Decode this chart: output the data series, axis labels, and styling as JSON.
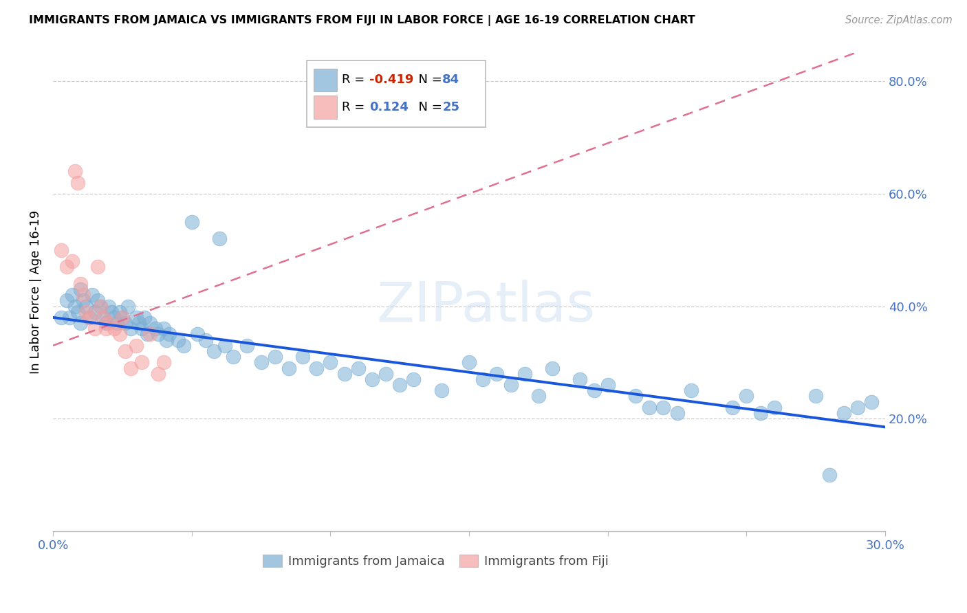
{
  "title": "IMMIGRANTS FROM JAMAICA VS IMMIGRANTS FROM FIJI IN LABOR FORCE | AGE 16-19 CORRELATION CHART",
  "source": "Source: ZipAtlas.com",
  "ylabel": "In Labor Force | Age 16-19",
  "xlim": [
    0.0,
    0.3
  ],
  "ylim": [
    0.0,
    0.85
  ],
  "ytick_positions": [
    0.2,
    0.4,
    0.6,
    0.8
  ],
  "ytick_labels": [
    "20.0%",
    "40.0%",
    "60.0%",
    "80.0%"
  ],
  "xtick_positions": [
    0.0,
    0.05,
    0.1,
    0.15,
    0.2,
    0.25,
    0.3
  ],
  "xtick_labels": [
    "0.0%",
    "",
    "",
    "",
    "",
    "",
    "30.0%"
  ],
  "jamaica_color": "#7bafd4",
  "fiji_color": "#f4a0a0",
  "jamaica_line_color": "#1a56db",
  "fiji_line_color": "#e07090",
  "jamaica_R": -0.419,
  "jamaica_N": 84,
  "fiji_R": 0.124,
  "fiji_N": 25,
  "jamaica_scatter_x": [
    0.003,
    0.005,
    0.006,
    0.007,
    0.008,
    0.009,
    0.01,
    0.01,
    0.011,
    0.012,
    0.013,
    0.014,
    0.015,
    0.016,
    0.017,
    0.018,
    0.019,
    0.02,
    0.021,
    0.022,
    0.023,
    0.024,
    0.025,
    0.026,
    0.027,
    0.028,
    0.03,
    0.031,
    0.032,
    0.033,
    0.034,
    0.035,
    0.037,
    0.038,
    0.04,
    0.041,
    0.042,
    0.045,
    0.047,
    0.05,
    0.052,
    0.055,
    0.058,
    0.06,
    0.062,
    0.065,
    0.07,
    0.075,
    0.08,
    0.085,
    0.09,
    0.095,
    0.1,
    0.105,
    0.11,
    0.115,
    0.12,
    0.125,
    0.13,
    0.14,
    0.15,
    0.155,
    0.16,
    0.165,
    0.17,
    0.175,
    0.18,
    0.19,
    0.195,
    0.2,
    0.21,
    0.215,
    0.22,
    0.225,
    0.23,
    0.245,
    0.25,
    0.255,
    0.26,
    0.275,
    0.28,
    0.285,
    0.29,
    0.295
  ],
  "jamaica_scatter_y": [
    0.38,
    0.41,
    0.38,
    0.42,
    0.4,
    0.39,
    0.43,
    0.37,
    0.41,
    0.4,
    0.38,
    0.42,
    0.39,
    0.41,
    0.4,
    0.38,
    0.37,
    0.4,
    0.39,
    0.38,
    0.37,
    0.39,
    0.38,
    0.37,
    0.4,
    0.36,
    0.38,
    0.37,
    0.36,
    0.38,
    0.35,
    0.37,
    0.36,
    0.35,
    0.36,
    0.34,
    0.35,
    0.34,
    0.33,
    0.55,
    0.35,
    0.34,
    0.32,
    0.52,
    0.33,
    0.31,
    0.33,
    0.3,
    0.31,
    0.29,
    0.31,
    0.29,
    0.3,
    0.28,
    0.29,
    0.27,
    0.28,
    0.26,
    0.27,
    0.25,
    0.3,
    0.27,
    0.28,
    0.26,
    0.28,
    0.24,
    0.29,
    0.27,
    0.25,
    0.26,
    0.24,
    0.22,
    0.22,
    0.21,
    0.25,
    0.22,
    0.24,
    0.21,
    0.22,
    0.24,
    0.1,
    0.21,
    0.22,
    0.23
  ],
  "fiji_scatter_x": [
    0.003,
    0.005,
    0.007,
    0.008,
    0.009,
    0.01,
    0.011,
    0.012,
    0.013,
    0.015,
    0.016,
    0.017,
    0.018,
    0.019,
    0.02,
    0.022,
    0.024,
    0.025,
    0.026,
    0.028,
    0.03,
    0.032,
    0.035,
    0.038,
    0.04
  ],
  "fiji_scatter_y": [
    0.5,
    0.47,
    0.48,
    0.64,
    0.62,
    0.44,
    0.42,
    0.39,
    0.38,
    0.36,
    0.47,
    0.4,
    0.38,
    0.36,
    0.37,
    0.36,
    0.35,
    0.38,
    0.32,
    0.29,
    0.33,
    0.3,
    0.35,
    0.28,
    0.3
  ],
  "jamaica_trend": [
    -0.65,
    0.38
  ],
  "fiji_trend": [
    1.8,
    0.33
  ],
  "watermark_text": "ZIPatlas",
  "background_color": "#ffffff",
  "grid_color": "#cccccc",
  "axis_color": "#4472c4"
}
